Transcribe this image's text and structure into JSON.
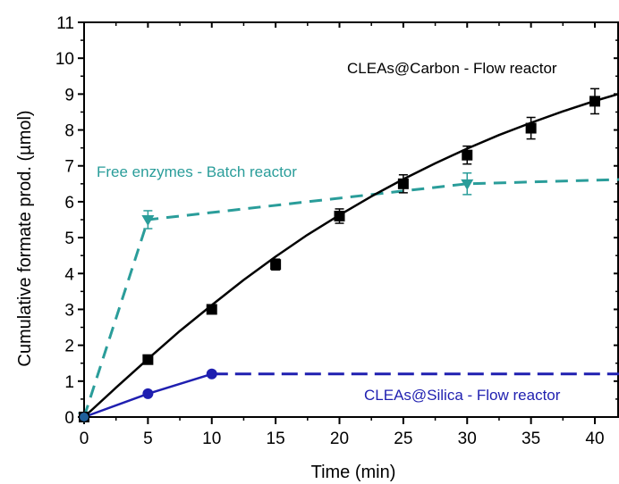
{
  "chart_data": {
    "type": "line",
    "xlabel": "Time (min)",
    "ylabel": "Cumulative formate prod. (µmol)",
    "xlim": [
      0,
      42
    ],
    "ylim": [
      0,
      11
    ],
    "xticks": [
      0,
      5,
      10,
      15,
      20,
      25,
      30,
      35,
      40
    ],
    "yticks": [
      0,
      1,
      2,
      3,
      4,
      5,
      6,
      7,
      8,
      9,
      10,
      11
    ],
    "grid": false,
    "series": [
      {
        "name": "CLEAs@Carbon - Flow reactor",
        "color": "#000000",
        "marker": "square",
        "x": [
          0,
          5,
          10,
          15,
          20,
          25,
          30,
          35,
          40
        ],
        "y": [
          0,
          1.6,
          3.0,
          4.25,
          5.6,
          6.5,
          7.3,
          8.05,
          8.8
        ],
        "err": [
          0,
          0.08,
          0.08,
          0.15,
          0.2,
          0.25,
          0.25,
          0.3,
          0.35
        ],
        "fit_x": [
          0,
          2.5,
          5,
          7.5,
          10,
          12.5,
          15,
          17.5,
          20,
          22.5,
          25,
          27.5,
          30,
          32.5,
          35,
          37.5,
          40,
          42
        ],
        "fit_y": [
          0,
          0.82,
          1.62,
          2.4,
          3.12,
          3.82,
          4.47,
          5.08,
          5.63,
          6.15,
          6.63,
          7.07,
          7.48,
          7.86,
          8.2,
          8.52,
          8.81,
          9.02
        ]
      },
      {
        "name": "Free enzymes - Batch reactor",
        "color": "#2a9d9a",
        "marker": "triangle-down",
        "x": [
          0,
          5,
          30
        ],
        "y": [
          0,
          5.5,
          6.5
        ],
        "err": [
          0,
          0.25,
          0.3
        ],
        "dash_x": [
          0,
          5,
          30,
          42
        ],
        "dash_y": [
          0,
          5.5,
          6.5,
          6.62
        ]
      },
      {
        "name": "CLEAs@Silica - Flow reactor",
        "color": "#1f1fb0",
        "marker": "circle",
        "x": [
          0,
          5,
          10
        ],
        "y": [
          0,
          0.65,
          1.2
        ],
        "err": [
          0,
          0,
          0
        ],
        "dash_x": [
          10,
          42
        ],
        "dash_y": [
          1.2,
          1.2
        ]
      }
    ]
  },
  "annotations": {
    "carbon": "CLEAs@Carbon - Flow reactor",
    "free": "Free enzymes - Batch reactor",
    "silica": "CLEAs@Silica - Flow reactor"
  }
}
